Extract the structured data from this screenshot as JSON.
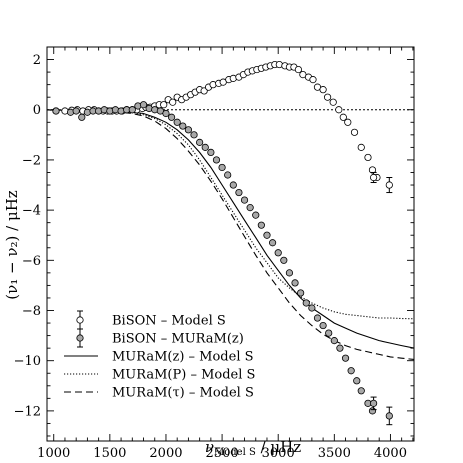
{
  "chart_data": {
    "type": "scatter",
    "xlabel_main": "ν",
    "xlabel_sub": "Model S",
    "xlabel_unit": " / μHz",
    "ylabel": "(ν₁ − ν₂) / μHz",
    "xlim": [
      940,
      4210
    ],
    "ylim": [
      -13.2,
      2.5
    ],
    "xticks": [
      1000,
      1500,
      2000,
      2500,
      3000,
      3500,
      4000
    ],
    "yticks": [
      2,
      0,
      -2,
      -4,
      -6,
      -8,
      -10,
      -12
    ],
    "zero_line": "dotted",
    "legend_position": "bottom-left",
    "series": [
      {
        "name": "BiSON – Model S",
        "kind": "points",
        "marker": "open-circle",
        "fill": "#ffffff",
        "x": [
          1020,
          1100,
          1160,
          1210,
          1260,
          1310,
          1360,
          1400,
          1440,
          1480,
          1520,
          1560,
          1610,
          1650,
          1700,
          1740,
          1790,
          1820,
          1860,
          1900,
          1940,
          1980,
          2020,
          2060,
          2100,
          2140,
          2180,
          2220,
          2260,
          2300,
          2340,
          2380,
          2420,
          2470,
          2510,
          2560,
          2600,
          2650,
          2690,
          2730,
          2770,
          2810,
          2850,
          2890,
          2930,
          2970,
          3010,
          3060,
          3100,
          3140,
          3180,
          3220,
          3270,
          3310,
          3350,
          3400,
          3440,
          3490,
          3540,
          3580,
          3620,
          3680,
          3740,
          3800,
          3840,
          3880
        ],
        "y": [
          -0.05,
          -0.05,
          -0.02,
          0.0,
          -0.05,
          0.0,
          0.0,
          -0.05,
          -0.05,
          -0.05,
          -0.05,
          -0.05,
          -0.05,
          0.0,
          0.0,
          0.0,
          0.05,
          0.1,
          0.1,
          0.15,
          0.2,
          0.2,
          0.4,
          0.3,
          0.5,
          0.4,
          0.5,
          0.6,
          0.7,
          0.8,
          0.75,
          0.9,
          1.0,
          1.05,
          1.1,
          1.2,
          1.25,
          1.3,
          1.4,
          1.5,
          1.55,
          1.6,
          1.65,
          1.7,
          1.75,
          1.8,
          1.8,
          1.75,
          1.7,
          1.7,
          1.6,
          1.4,
          1.3,
          1.2,
          0.9,
          0.8,
          0.5,
          0.3,
          0.0,
          -0.3,
          -0.5,
          -0.9,
          -1.5,
          -1.9,
          -2.4,
          -2.7
        ]
      },
      {
        "name": "BiSON – MURaM(z)",
        "kind": "points",
        "marker": "filled-circle",
        "fill": "#a8a8a8",
        "x": [
          1020,
          1150,
          1200,
          1250,
          1300,
          1350,
          1400,
          1450,
          1500,
          1550,
          1600,
          1650,
          1700,
          1750,
          1800,
          1850,
          1900,
          1950,
          2000,
          2050,
          2100,
          2150,
          2200,
          2250,
          2300,
          2350,
          2400,
          2450,
          2500,
          2550,
          2600,
          2650,
          2700,
          2750,
          2800,
          2850,
          2900,
          2950,
          3000,
          3050,
          3100,
          3150,
          3200,
          3250,
          3300,
          3350,
          3400,
          3450,
          3500,
          3550,
          3600,
          3650,
          3700,
          3740,
          3800,
          3840
        ],
        "y": [
          -0.05,
          -0.1,
          -0.05,
          -0.3,
          -0.1,
          -0.05,
          -0.05,
          0.0,
          -0.05,
          0.0,
          -0.05,
          0.0,
          0.0,
          0.15,
          0.2,
          0.05,
          0.0,
          -0.05,
          -0.15,
          -0.3,
          -0.5,
          -0.65,
          -0.8,
          -1.0,
          -1.3,
          -1.5,
          -1.7,
          -2.0,
          -2.3,
          -2.6,
          -3.0,
          -3.3,
          -3.6,
          -3.9,
          -4.2,
          -4.6,
          -5.0,
          -5.3,
          -5.7,
          -6.0,
          -6.5,
          -6.9,
          -7.3,
          -7.7,
          -7.9,
          -8.3,
          -8.6,
          -8.9,
          -9.2,
          -9.5,
          -9.9,
          -10.4,
          -10.8,
          -11.2,
          -11.7,
          -12.0
        ]
      },
      {
        "name": "BiSON – Model S",
        "kind": "errorpoint",
        "marker": "open-circle",
        "x": [
          3850,
          3990
        ],
        "y": [
          -2.7,
          -3.0
        ],
        "err": [
          0.2,
          0.3
        ]
      },
      {
        "name": "BiSON – MURaM(z)",
        "kind": "errorpoint",
        "marker": "filled-circle",
        "x": [
          3850,
          3990
        ],
        "y": [
          -11.7,
          -12.2
        ],
        "err": [
          0.25,
          0.35
        ]
      },
      {
        "name": "MURaM(z) – Model S",
        "kind": "line",
        "dash": "",
        "x": [
          940,
          1200,
          1500,
          1700,
          1800,
          1900,
          2000,
          2100,
          2200,
          2300,
          2400,
          2500,
          2600,
          2700,
          2800,
          2900,
          3000,
          3100,
          3200,
          3300,
          3400,
          3500,
          3600,
          3700,
          3800,
          3900,
          4000,
          4100,
          4210
        ],
        "y": [
          -0.01,
          -0.02,
          -0.05,
          -0.1,
          -0.15,
          -0.3,
          -0.5,
          -0.8,
          -1.2,
          -1.7,
          -2.3,
          -3.0,
          -3.7,
          -4.4,
          -5.1,
          -5.8,
          -6.4,
          -7.0,
          -7.5,
          -7.9,
          -8.2,
          -8.5,
          -8.7,
          -8.9,
          -9.05,
          -9.2,
          -9.3,
          -9.4,
          -9.5
        ]
      },
      {
        "name": "MURaM(P) – Model S",
        "kind": "line",
        "dash": "1.2,1.8",
        "x": [
          940,
          1200,
          1500,
          1700,
          1800,
          1900,
          2000,
          2100,
          2200,
          2300,
          2400,
          2500,
          2600,
          2700,
          2800,
          2900,
          3000,
          3100,
          3200,
          3300,
          3400,
          3500,
          3600,
          3700,
          3800,
          3900,
          4000,
          4100,
          4210
        ],
        "y": [
          -0.01,
          -0.02,
          -0.05,
          -0.1,
          -0.2,
          -0.35,
          -0.6,
          -0.95,
          -1.4,
          -2.0,
          -2.7,
          -3.4,
          -4.1,
          -4.8,
          -5.5,
          -6.1,
          -6.7,
          -7.1,
          -7.45,
          -7.7,
          -7.9,
          -8.05,
          -8.15,
          -8.2,
          -8.25,
          -8.3,
          -8.3,
          -8.32,
          -8.33
        ]
      },
      {
        "name": "MURaM(τ) – Model S",
        "kind": "line",
        "dash": "7,4",
        "x": [
          940,
          1200,
          1500,
          1700,
          1800,
          1900,
          2000,
          2100,
          2200,
          2300,
          2400,
          2500,
          2600,
          2700,
          2800,
          2900,
          3000,
          3100,
          3200,
          3300,
          3400,
          3500,
          3600,
          3700,
          3800,
          3900,
          4000,
          4100,
          4210
        ],
        "y": [
          -0.01,
          -0.02,
          -0.05,
          -0.15,
          -0.25,
          -0.45,
          -0.75,
          -1.15,
          -1.65,
          -2.2,
          -2.85,
          -3.55,
          -4.3,
          -5.05,
          -5.8,
          -6.5,
          -7.1,
          -7.7,
          -8.2,
          -8.6,
          -8.95,
          -9.2,
          -9.4,
          -9.55,
          -9.65,
          -9.75,
          -9.85,
          -9.9,
          -9.95
        ]
      }
    ],
    "legend": [
      {
        "label": "BiSON – Model S",
        "symbol": "open-circle-err"
      },
      {
        "label": "BiSON – MURaM(z)",
        "symbol": "filled-circle-err"
      },
      {
        "label": "MURaM(z) – Model S",
        "symbol": "solid-line"
      },
      {
        "label": "MURaM(P) – Model S",
        "symbol": "dotted-line"
      },
      {
        "label": "MURaM(τ) – Model S",
        "symbol": "dashed-line"
      }
    ]
  }
}
